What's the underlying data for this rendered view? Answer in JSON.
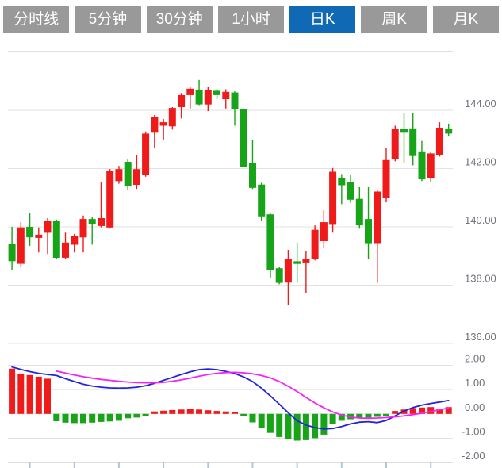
{
  "tabs": [
    {
      "name": "tab-minute-line",
      "label": "分时线",
      "active": false
    },
    {
      "name": "tab-5min",
      "label": "5分钟",
      "active": false
    },
    {
      "name": "tab-30min",
      "label": "30分钟",
      "active": false
    },
    {
      "name": "tab-1hour",
      "label": "1小时",
      "active": false
    },
    {
      "name": "tab-daily",
      "label": "日K",
      "active": true
    },
    {
      "name": "tab-weekly",
      "label": "周K",
      "active": false
    },
    {
      "name": "tab-monthly",
      "label": "月K",
      "active": false
    }
  ],
  "colors": {
    "up": "#ef1a1a",
    "down": "#18a418",
    "dif_line": "#2323dc",
    "dea_line": "#f423f4",
    "grid": "#e2e2e2",
    "border": "#bfbfbf",
    "axis": "#c9c9c9",
    "tick": "#b3c6d9",
    "axis_text": "#6d7178",
    "tab_bg": "#999999",
    "tab_active_bg": "#0f69b4",
    "tab_text": "#ffffff"
  },
  "chart_data": [
    {
      "type": "candlestick",
      "candle_format": "[open, high, low, close]",
      "y_axis": {
        "ticks": [
          144,
          142,
          140,
          138,
          136
        ],
        "labels": [
          "144.00",
          "142.00",
          "140.00",
          "138.00",
          "136.00"
        ],
        "range": [
          136.0,
          146.02
        ],
        "grid": true,
        "label_side": "right"
      },
      "candles": [
        [
          139.42,
          140.0,
          138.53,
          138.82
        ],
        [
          138.73,
          140.16,
          138.62,
          139.98
        ],
        [
          140.0,
          140.48,
          139.35,
          139.64
        ],
        [
          139.62,
          139.98,
          139.12,
          139.73
        ],
        [
          139.8,
          140.3,
          139.07,
          140.21
        ],
        [
          140.21,
          140.25,
          138.89,
          138.94
        ],
        [
          138.94,
          139.8,
          138.89,
          139.46
        ],
        [
          139.39,
          139.76,
          139.12,
          139.68
        ],
        [
          139.64,
          140.39,
          139.12,
          140.27
        ],
        [
          140.27,
          140.34,
          139.39,
          140.09
        ],
        [
          140.03,
          141.52,
          139.98,
          140.3
        ],
        [
          139.98,
          141.98,
          139.94,
          141.93
        ],
        [
          141.57,
          142.09,
          141.48,
          141.98
        ],
        [
          142.23,
          142.34,
          141.25,
          141.39
        ],
        [
          141.44,
          142.45,
          141.3,
          141.98
        ],
        [
          141.79,
          143.27,
          141.72,
          143.2
        ],
        [
          143.23,
          143.84,
          142.7,
          143.77
        ],
        [
          143.47,
          143.7,
          142.97,
          143.59
        ],
        [
          143.45,
          144.11,
          143.34,
          144.08
        ],
        [
          144.11,
          144.59,
          143.72,
          144.52
        ],
        [
          144.52,
          144.79,
          144.06,
          144.74
        ],
        [
          144.68,
          145.04,
          144.15,
          144.2
        ],
        [
          144.2,
          144.79,
          143.97,
          144.7
        ],
        [
          144.67,
          144.74,
          144.38,
          144.52
        ],
        [
          144.38,
          144.72,
          144.06,
          144.63
        ],
        [
          144.61,
          144.65,
          143.47,
          144.05
        ],
        [
          144.05,
          144.06,
          142.05,
          142.07
        ],
        [
          142.18,
          142.99,
          141.3,
          141.34
        ],
        [
          141.45,
          141.51,
          140.21,
          140.36
        ],
        [
          140.43,
          140.48,
          138.24,
          138.53
        ],
        [
          138.58,
          138.62,
          138.03,
          138.08
        ],
        [
          138.09,
          139.21,
          137.31,
          138.89
        ],
        [
          138.82,
          139.46,
          138.08,
          138.73
        ],
        [
          138.78,
          139.18,
          137.73,
          138.91
        ],
        [
          138.89,
          140.05,
          138.85,
          139.9
        ],
        [
          139.51,
          140.57,
          139.26,
          140.16
        ],
        [
          140.07,
          142.02,
          139.8,
          141.89
        ],
        [
          141.66,
          141.81,
          140.78,
          141.43
        ],
        [
          141.54,
          141.78,
          140.82,
          140.93
        ],
        [
          140.96,
          141.36,
          139.94,
          140.05
        ],
        [
          140.27,
          141.36,
          138.89,
          139.44
        ],
        [
          139.44,
          141.26,
          138.08,
          141.21
        ],
        [
          140.98,
          142.7,
          140.84,
          142.29
        ],
        [
          142.32,
          143.47,
          142.25,
          143.35
        ],
        [
          143.35,
          143.9,
          142.18,
          143.23
        ],
        [
          143.38,
          143.9,
          142.11,
          142.43
        ],
        [
          142.59,
          142.95,
          141.57,
          141.63
        ],
        [
          141.68,
          142.59,
          141.54,
          142.52
        ],
        [
          142.47,
          143.59,
          142.41,
          143.4
        ],
        [
          143.35,
          143.54,
          143.11,
          143.2
        ]
      ]
    },
    {
      "type": "macd",
      "y_axis": {
        "ticks": [
          2,
          1,
          0,
          -1,
          -2
        ],
        "labels": [
          "2.00",
          "1.00",
          "0.00",
          "-1.00",
          "-2.00"
        ],
        "range": [
          -2.0,
          2.0
        ],
        "grid": true,
        "label_side": "right"
      },
      "x_axis": {
        "tick_candle_indices": [
          3,
          8,
          13,
          18,
          23,
          28,
          33,
          38,
          43,
          48
        ]
      },
      "histogram": [
        1.86,
        1.66,
        1.6,
        1.53,
        1.45,
        -0.3,
        -0.36,
        -0.38,
        -0.38,
        -0.36,
        -0.33,
        -0.31,
        -0.28,
        -0.18,
        -0.15,
        -0.05,
        0.1,
        0.13,
        0.16,
        0.18,
        0.2,
        0.18,
        0.15,
        0.12,
        0.1,
        0.07,
        -0.1,
        -0.35,
        -0.58,
        -0.78,
        -0.95,
        -1.05,
        -1.1,
        -1.08,
        -1.0,
        -0.85,
        -0.4,
        -0.28,
        -0.22,
        -0.18,
        -0.15,
        -0.12,
        -0.08,
        0.12,
        0.18,
        0.24,
        0.26,
        0.28,
        0.22,
        0.28
      ],
      "series": [
        {
          "name": "DIF",
          "color_key": "dif_line",
          "values": [
            1.93,
            1.83,
            1.74,
            1.67,
            1.62,
            1.58,
            1.45,
            1.33,
            1.22,
            1.15,
            1.1,
            1.07,
            1.06,
            1.07,
            1.1,
            1.16,
            1.26,
            1.38,
            1.5,
            1.62,
            1.73,
            1.82,
            1.85,
            1.82,
            1.75,
            1.66,
            1.52,
            1.33,
            1.06,
            0.74,
            0.4,
            0.05,
            -0.28,
            -0.46,
            -0.56,
            -0.62,
            -0.6,
            -0.52,
            -0.41,
            -0.34,
            -0.32,
            -0.36,
            -0.27,
            -0.08,
            0.12,
            0.26,
            0.36,
            0.43,
            0.49,
            0.55
          ]
        },
        {
          "name": "DEA",
          "color_key": "dea_line",
          "values": [
            null,
            null,
            null,
            null,
            null,
            1.76,
            1.68,
            1.6,
            1.53,
            1.47,
            1.42,
            1.38,
            1.34,
            1.31,
            1.29,
            1.28,
            1.28,
            1.3,
            1.34,
            1.4,
            1.47,
            1.55,
            1.62,
            1.67,
            1.7,
            1.71,
            1.69,
            1.65,
            1.58,
            1.48,
            1.33,
            1.14,
            0.92,
            0.68,
            0.45,
            0.25,
            0.08,
            -0.05,
            -0.13,
            -0.17,
            -0.18,
            -0.17,
            -0.15,
            -0.12,
            -0.08,
            -0.03,
            0.03,
            0.1,
            0.17,
            0.24
          ]
        }
      ]
    }
  ]
}
